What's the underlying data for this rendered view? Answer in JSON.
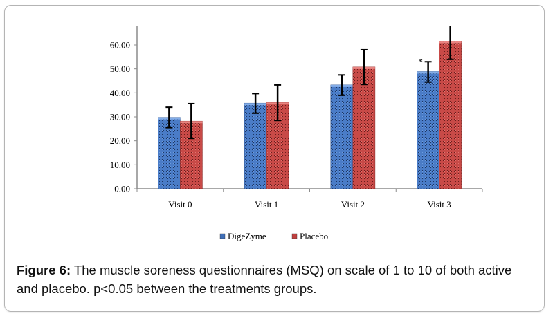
{
  "chart_data": {
    "type": "bar",
    "title": "",
    "xlabel": "",
    "ylabel": "",
    "categories": [
      "Visit 0",
      "Visit 1",
      "Visit 2",
      "Visit 3"
    ],
    "series": [
      {
        "name": "DigeZyme",
        "color": "#3f6fb8",
        "values": [
          29.8,
          35.7,
          43.3,
          48.9
        ],
        "error_low": [
          25.5,
          31.5,
          39.0,
          44.5
        ],
        "error_high": [
          34.0,
          39.7,
          47.5,
          53.0
        ]
      },
      {
        "name": "Placebo",
        "color": "#c0403e",
        "values": [
          28.2,
          36.0,
          50.8,
          61.6
        ],
        "error_low": [
          21.0,
          28.5,
          43.5,
          54.0
        ],
        "error_high": [
          35.5,
          43.3,
          58.0,
          68.0
        ]
      }
    ],
    "ylim": [
      0,
      60
    ],
    "yticks": [
      "0.00",
      "10.00",
      "20.00",
      "30.00",
      "40.00",
      "50.00",
      "60.00"
    ],
    "grid": false,
    "legend": "bottom",
    "annotations": [
      {
        "text": "*",
        "category": "Visit 3",
        "series": "DigeZyme"
      }
    ]
  },
  "caption": {
    "label": "Figure 6:",
    "text": " The muscle soreness questionnaires (MSQ) on scale of 1 to 10 of both active and placebo. p<0.05 between the treatments groups."
  }
}
